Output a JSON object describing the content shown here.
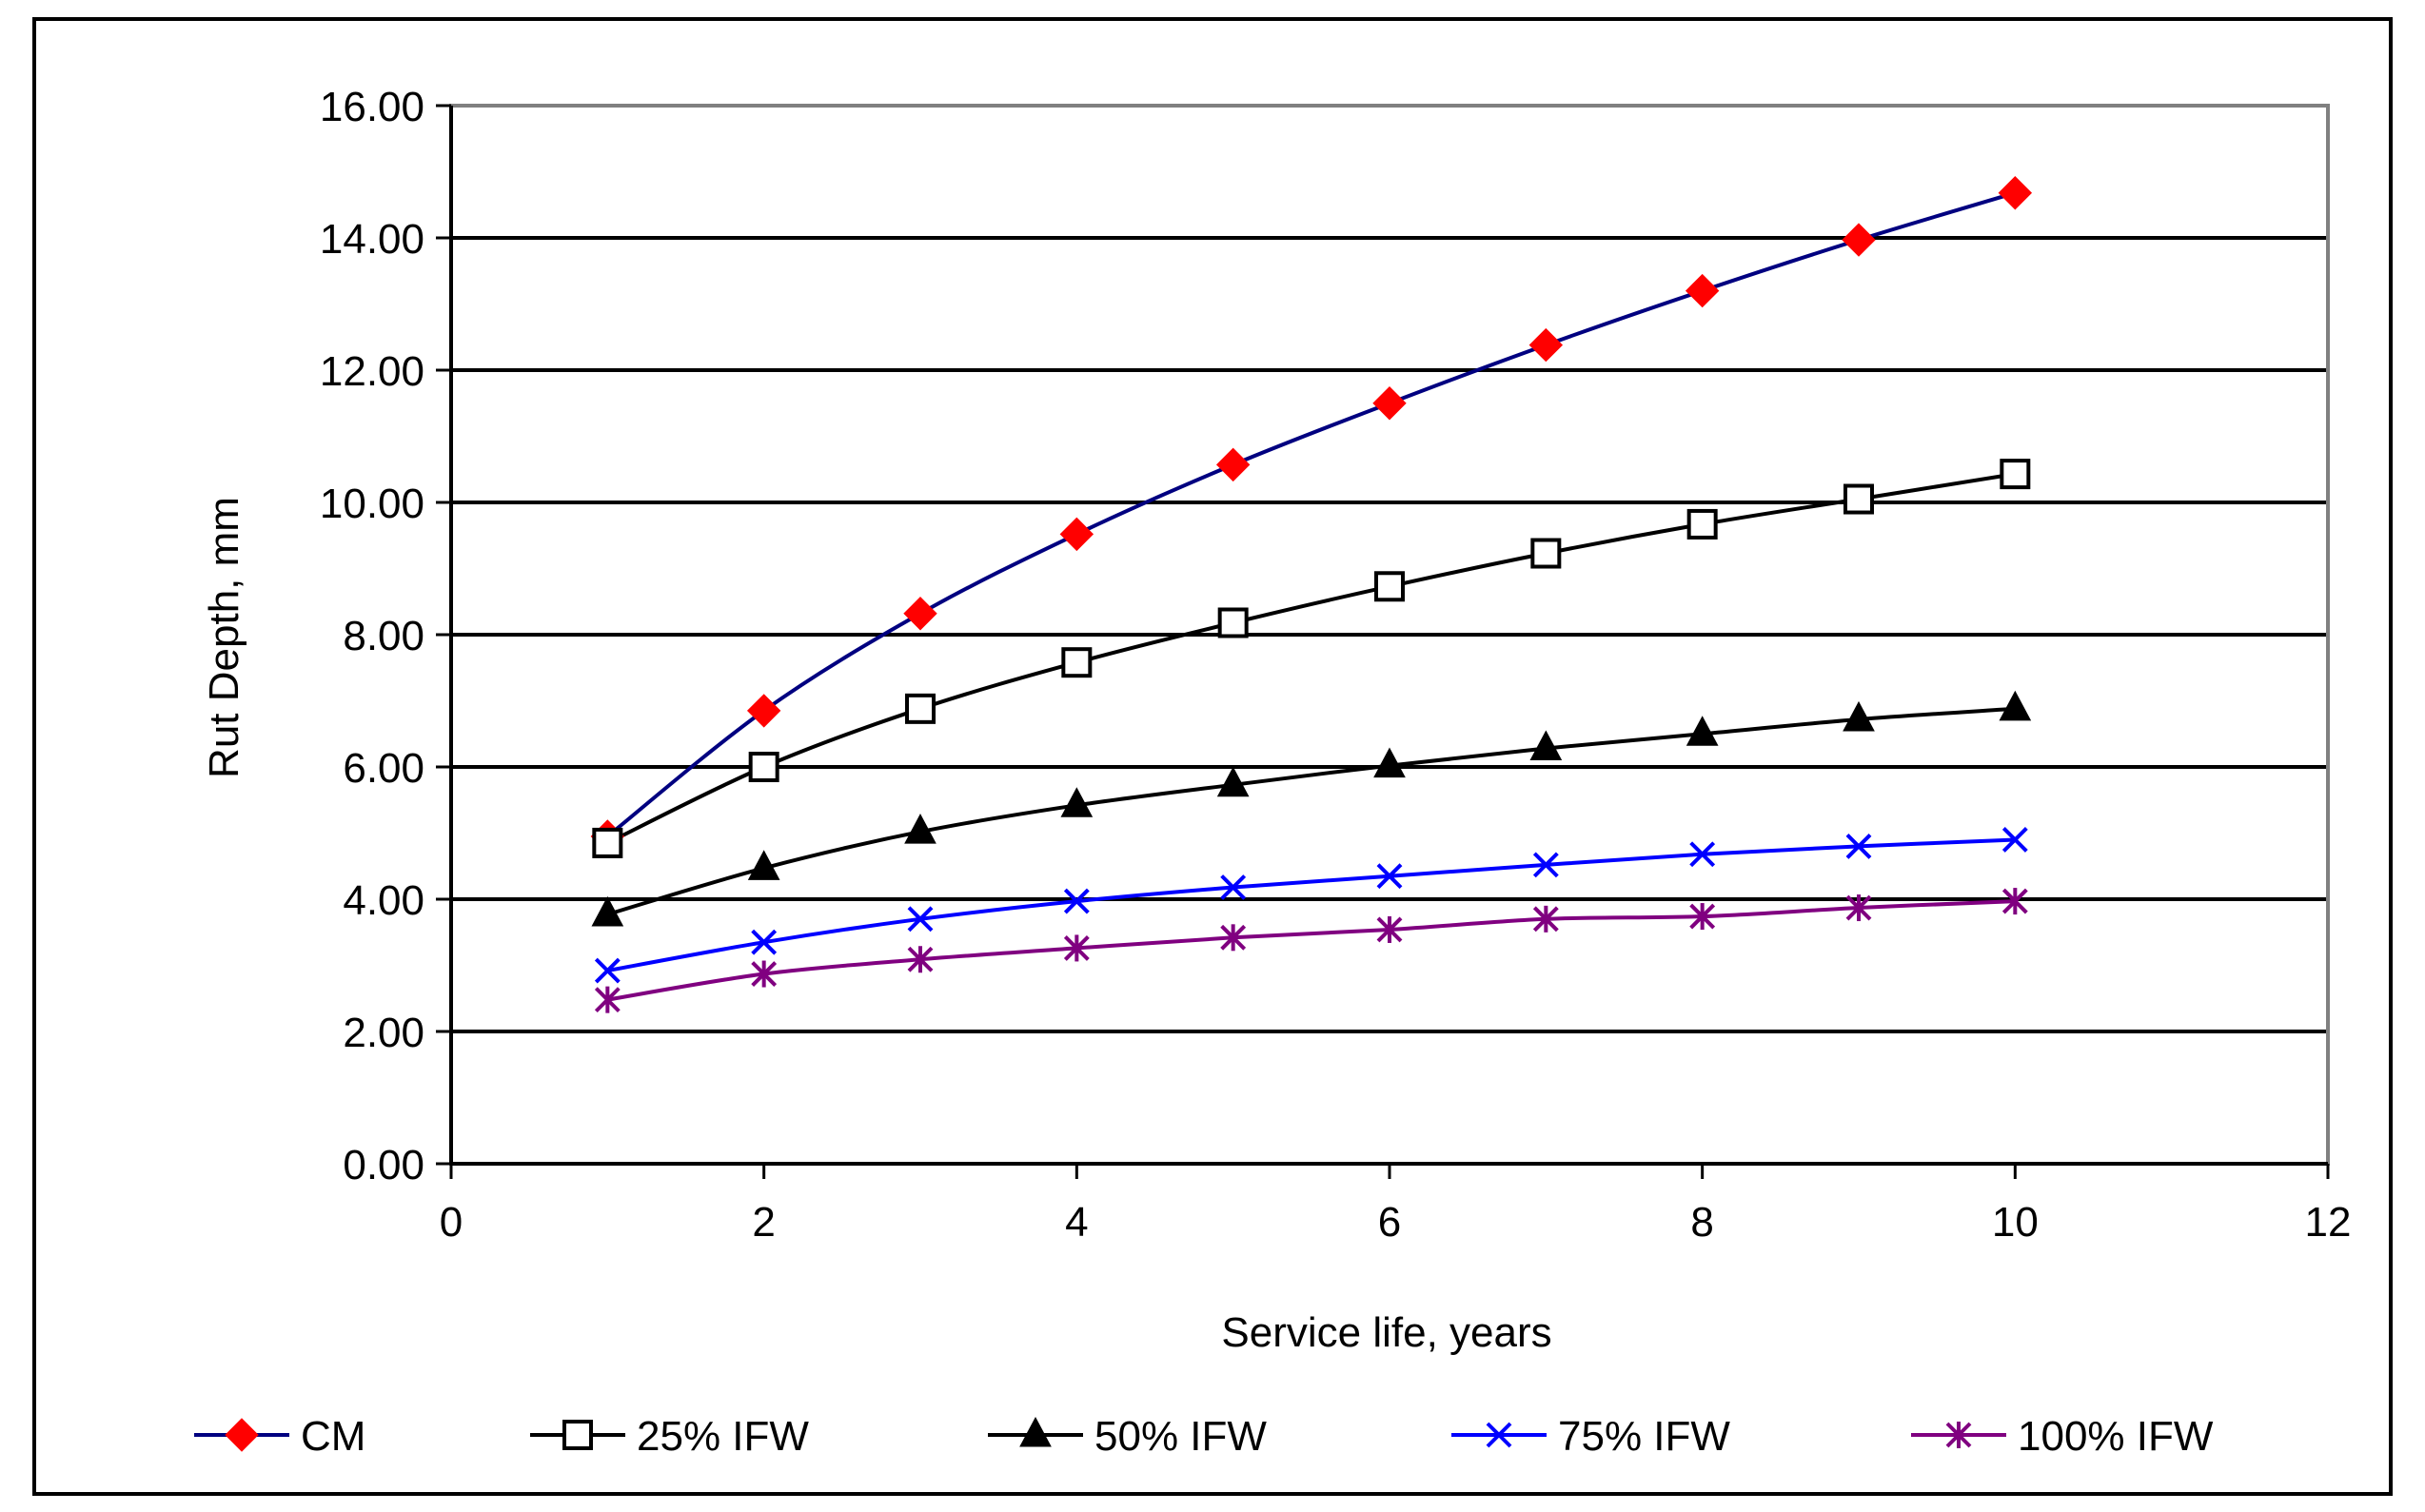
{
  "chart_data": {
    "type": "line",
    "title": "",
    "xlabel": "Service life, years",
    "ylabel": "Rut Depth, mm",
    "xlim": [
      0,
      12
    ],
    "ylim": [
      0,
      16
    ],
    "x_ticks": [
      "0",
      "2",
      "4",
      "6",
      "8",
      "10",
      "12"
    ],
    "y_ticks": [
      "0.00",
      "2.00",
      "4.00",
      "6.00",
      "8.00",
      "10.00",
      "12.00",
      "14.00",
      "16.00"
    ],
    "grid": "horizontal",
    "legend_position": "bottom",
    "x": [
      1,
      2,
      3,
      4,
      5,
      6,
      7,
      8,
      9,
      10
    ],
    "series": [
      {
        "name": "CM",
        "color": "#000080",
        "marker": "diamond",
        "marker_color": "#ff0000",
        "values": [
          4.95,
          6.85,
          8.32,
          9.52,
          10.57,
          11.5,
          12.38,
          13.2,
          13.97,
          14.68
        ]
      },
      {
        "name": "25% IFW",
        "color": "#000000",
        "marker": "square-open",
        "marker_color": "#000000",
        "values": [
          4.85,
          6.0,
          6.88,
          7.58,
          8.18,
          8.73,
          9.23,
          9.67,
          10.05,
          10.43
        ]
      },
      {
        "name": "50% IFW",
        "color": "#000000",
        "marker": "triangle",
        "marker_color": "#000000",
        "values": [
          3.77,
          4.47,
          5.02,
          5.42,
          5.73,
          6.02,
          6.28,
          6.5,
          6.72,
          6.88
        ]
      },
      {
        "name": "75% IFW",
        "color": "#0000ff",
        "marker": "x",
        "marker_color": "#0000ff",
        "values": [
          2.92,
          3.35,
          3.7,
          3.97,
          4.18,
          4.35,
          4.52,
          4.68,
          4.8,
          4.9
        ]
      },
      {
        "name": "100% IFW",
        "color": "#800080",
        "marker": "star",
        "marker_color": "#800080",
        "values": [
          2.48,
          2.87,
          3.09,
          3.26,
          3.42,
          3.54,
          3.7,
          3.74,
          3.87,
          3.97
        ]
      }
    ]
  }
}
